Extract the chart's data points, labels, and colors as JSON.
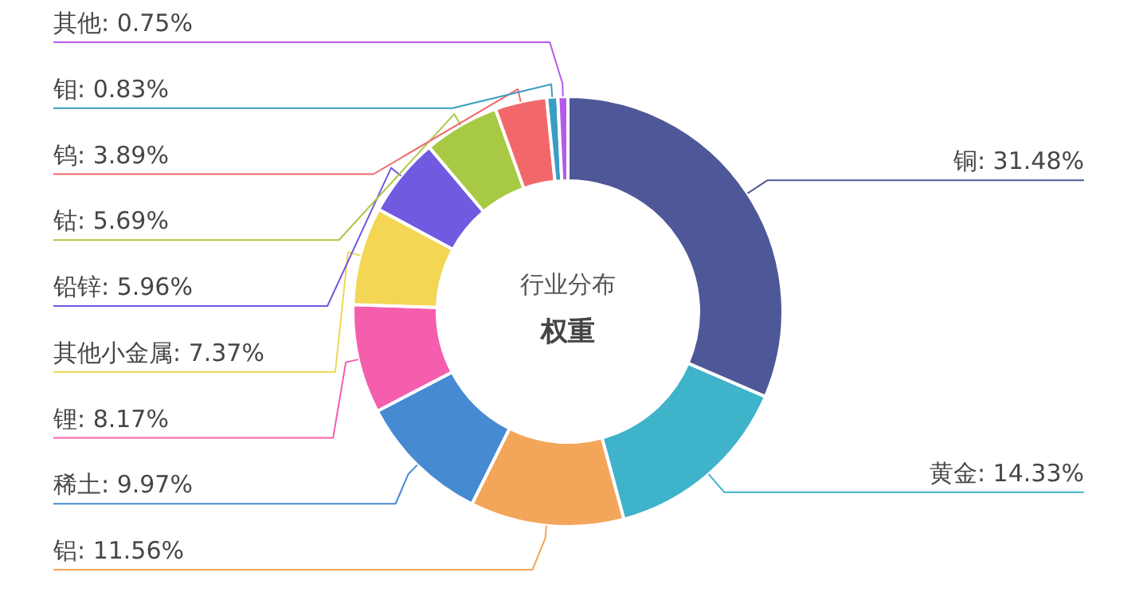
{
  "chart_data": {
    "type": "donut",
    "title": "权重",
    "subtitle": "行业分布",
    "categories": [
      "铜",
      "黄金",
      "铝",
      "稀土",
      "锂",
      "其他小金属",
      "铅锌",
      "钴",
      "钨",
      "钼",
      "其他"
    ],
    "values": [
      31.48,
      14.33,
      11.56,
      9.97,
      8.17,
      7.37,
      5.96,
      5.69,
      3.89,
      0.83,
      0.75
    ],
    "value_labels": [
      "31.48%",
      "14.33%",
      "11.56%",
      "9.97%",
      "8.17%",
      "7.37%",
      "5.96%",
      "5.69%",
      "3.89%",
      "0.83%",
      "0.75%"
    ],
    "colors": [
      "#4e5899",
      "#3eb3ca",
      "#f3a55a",
      "#468ad2",
      "#f45ead",
      "#f2d654",
      "#715ae0",
      "#a7c943",
      "#f2686a",
      "#3a9dc3",
      "#b55ae8"
    ]
  }
}
